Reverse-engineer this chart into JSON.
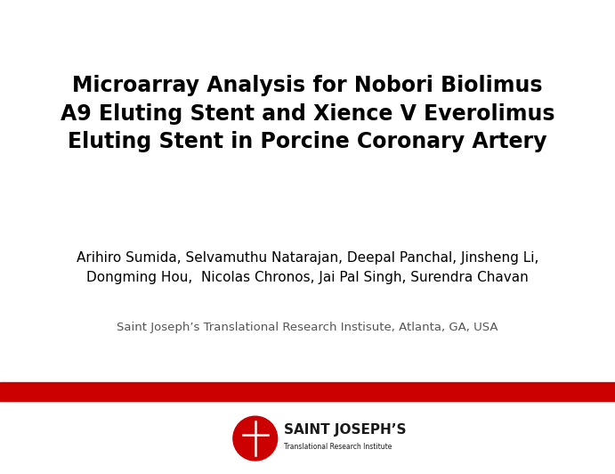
{
  "title_line1": "Microarray Analysis for Nobori Biolimus",
  "title_line2": "A9 Eluting Stent and Xience V Everolimus",
  "title_line3": "Eluting Stent in Porcine Coronary Artery",
  "authors_line1": "Arihiro Sumida, Selvamuthu Natarajan, Deepal Panchal, Jinsheng Li,",
  "authors_line2": "Dongming Hou,  Nicolas Chronos, Jai Pal Singh, Surendra Chavan",
  "institution": "Saint Joseph’s Translational Research Instisute, Atlanta, GA, USA",
  "logo_text1": "SAINT JOSEPH’S",
  "logo_text2": "Translational Research Institute",
  "background_color": "#ffffff",
  "title_color": "#000000",
  "author_color": "#000000",
  "institution_color": "#555555",
  "red_bar_color": "#cc0000",
  "logo_oval_color": "#cc0000",
  "logo_text_color": "#1a1a1a",
  "title_fontsize": 17,
  "authors_fontsize": 11,
  "institution_fontsize": 9.5
}
